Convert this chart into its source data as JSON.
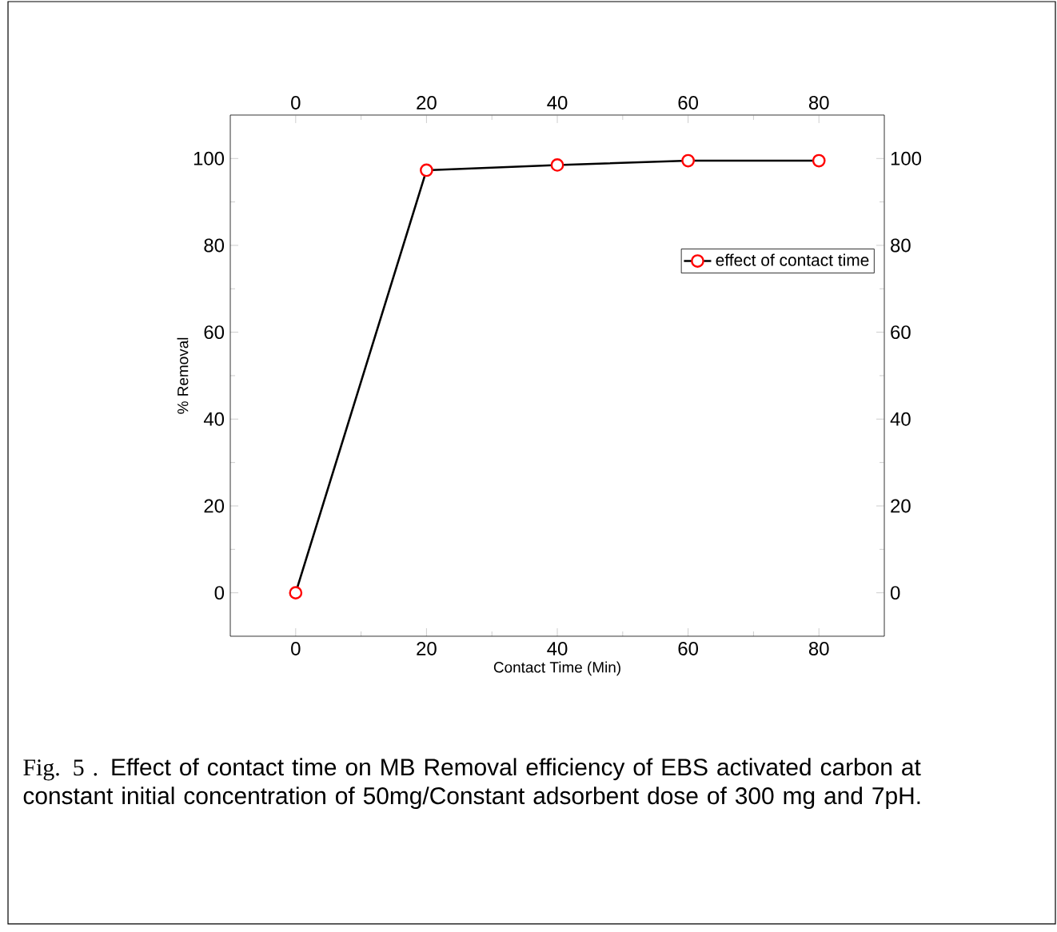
{
  "chart_data": {
    "type": "line",
    "xlabel": "Contact Time (Min)",
    "ylabel": "% Removal",
    "x": [
      0,
      20,
      40,
      60,
      80
    ],
    "series": [
      {
        "name": "effect of contact time",
        "color": "#ff0000",
        "values": [
          0,
          97.3,
          98.5,
          99.5,
          99.5
        ]
      }
    ],
    "xlim": [
      -10,
      90
    ],
    "xticks": [
      0,
      20,
      40,
      60,
      80
    ],
    "ylim": [
      -10,
      110
    ],
    "yticks": [
      0,
      20,
      40,
      60,
      80,
      100
    ],
    "x2lim": [
      -10,
      90
    ],
    "x2ticks": [
      0,
      20,
      40,
      60,
      80
    ],
    "y2lim": [
      -10,
      110
    ],
    "y2ticks": [
      0,
      20,
      40,
      60,
      80,
      100
    ],
    "marker": "circle",
    "line_style": "solid",
    "legend": "right",
    "grid": false,
    "annotations": [
      "Fig. 5 .",
      "Effect of contact time on MB Removal efficiency of EBS activated carbon at constant initial concentration of 50mg/Constant adsorbent dose of 300 mg and 7pH."
    ]
  }
}
